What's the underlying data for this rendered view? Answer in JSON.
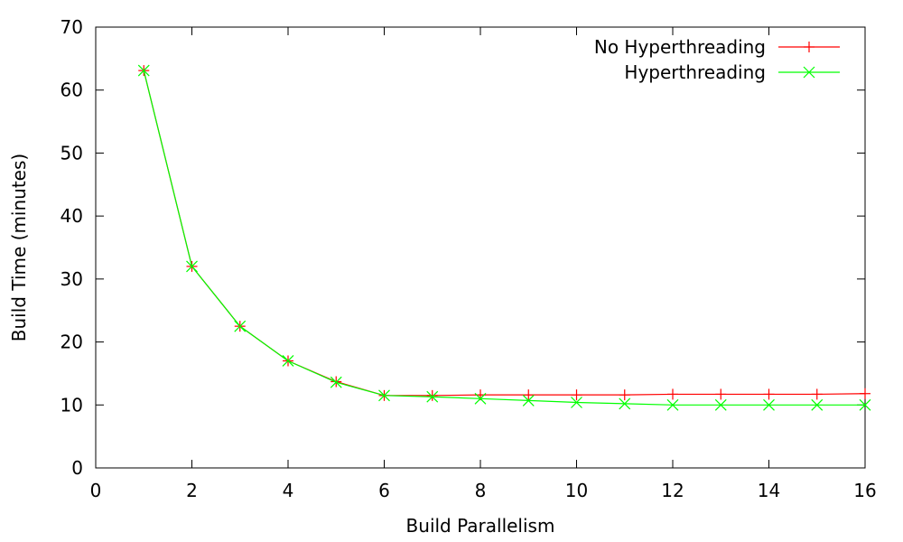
{
  "chart_data": {
    "type": "line",
    "title": "",
    "xlabel": "Build Parallelism",
    "ylabel": "Build Time (minutes)",
    "xlim": [
      0,
      16
    ],
    "ylim": [
      0,
      70
    ],
    "xticks": [
      0,
      2,
      4,
      6,
      8,
      10,
      12,
      14,
      16
    ],
    "yticks": [
      0,
      10,
      20,
      30,
      40,
      50,
      60,
      70
    ],
    "grid": false,
    "legend": "top-right",
    "x": [
      1,
      2,
      3,
      4,
      5,
      6,
      7,
      8,
      9,
      10,
      11,
      12,
      13,
      14,
      15,
      16
    ],
    "series": [
      {
        "name": "No Hyperthreading",
        "color": "#ff0000",
        "marker": "plus",
        "values": [
          63.1,
          32.0,
          22.5,
          17.0,
          13.7,
          11.5,
          11.5,
          11.6,
          11.6,
          11.6,
          11.6,
          11.7,
          11.7,
          11.7,
          11.7,
          11.8
        ]
      },
      {
        "name": "Hyperthreading",
        "color": "#00ff00",
        "marker": "cross",
        "values": [
          63.1,
          32.0,
          22.5,
          17.0,
          13.6,
          11.5,
          11.3,
          11.0,
          10.7,
          10.4,
          10.2,
          10.0,
          10.0,
          10.0,
          10.0,
          10.0
        ]
      }
    ]
  }
}
